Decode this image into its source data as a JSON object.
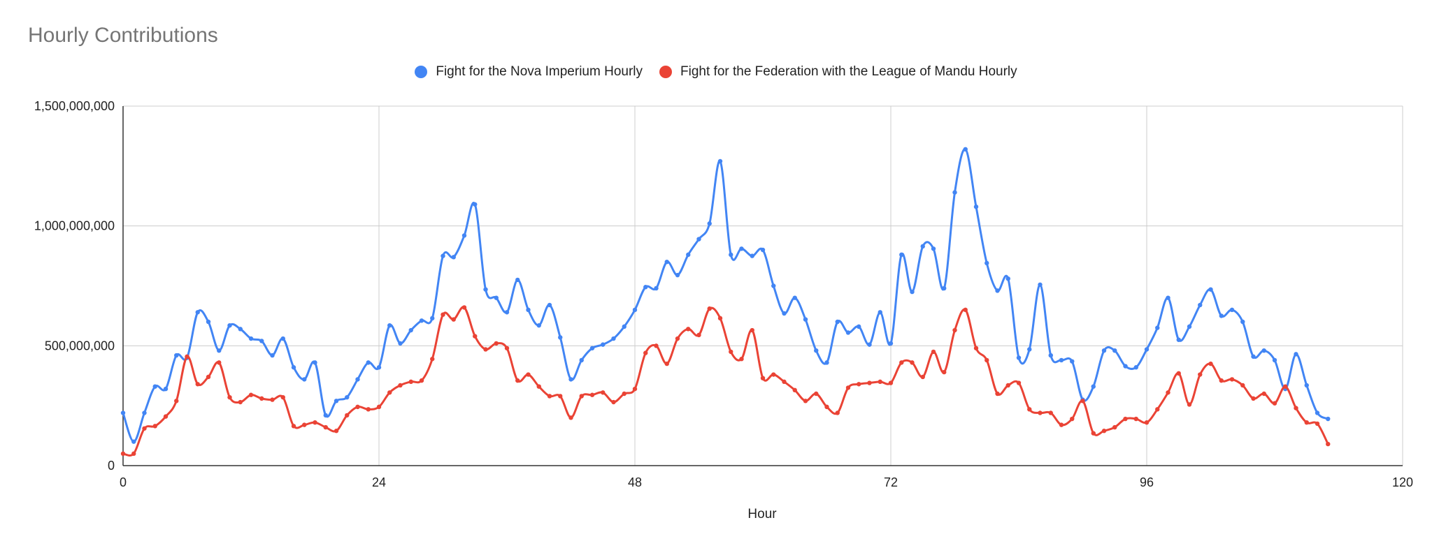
{
  "chart_data": {
    "type": "line",
    "title": "Hourly Contributions",
    "xlabel": "Hour",
    "ylabel": "",
    "xlim": [
      0,
      120
    ],
    "ylim": [
      0,
      1500000000
    ],
    "x_ticks": [
      0,
      24,
      48,
      72,
      96,
      120
    ],
    "y_ticks": [
      0,
      500000000,
      1000000000,
      1500000000
    ],
    "x_tick_labels": [
      "0",
      "24",
      "48",
      "72",
      "96",
      "120"
    ],
    "y_tick_labels": [
      "0",
      "500,000,000",
      "1,000,000,000",
      "1,500,000,000"
    ],
    "grid": true,
    "legend": "top",
    "series": [
      {
        "name": "Fight for the Nova Imperium Hourly",
        "color": "#4285F4",
        "x": [
          0,
          1,
          2,
          3,
          4,
          5,
          6,
          7,
          8,
          9,
          10,
          11,
          12,
          13,
          14,
          15,
          16,
          17,
          18,
          19,
          20,
          21,
          22,
          23,
          24,
          25,
          26,
          27,
          28,
          29,
          30,
          31,
          32,
          33,
          34,
          35,
          36,
          37,
          38,
          39,
          40,
          41,
          42,
          43,
          44,
          45,
          46,
          47,
          48,
          49,
          50,
          51,
          52,
          53,
          54,
          55,
          56,
          57,
          58,
          59,
          60,
          61,
          62,
          63,
          64,
          65,
          66,
          67,
          68,
          69,
          70,
          71,
          72,
          73,
          74,
          75,
          76,
          77,
          78,
          79,
          80,
          81,
          82,
          83,
          84,
          85,
          86,
          87,
          88,
          89,
          90,
          91,
          92,
          93,
          94,
          95,
          96,
          97,
          98,
          99,
          100,
          101,
          102,
          103,
          104,
          105,
          106,
          107,
          108,
          109,
          110,
          111,
          112,
          113
        ],
        "values": [
          220000000,
          100000000,
          220000000,
          330000000,
          320000000,
          460000000,
          450000000,
          640000000,
          600000000,
          480000000,
          585000000,
          570000000,
          530000000,
          520000000,
          460000000,
          530000000,
          410000000,
          360000000,
          430000000,
          210000000,
          270000000,
          285000000,
          360000000,
          430000000,
          410000000,
          585000000,
          510000000,
          565000000,
          605000000,
          615000000,
          875000000,
          870000000,
          960000000,
          1090000000,
          735000000,
          700000000,
          640000000,
          775000000,
          650000000,
          585000000,
          670000000,
          535000000,
          360000000,
          440000000,
          490000000,
          505000000,
          530000000,
          580000000,
          650000000,
          745000000,
          740000000,
          850000000,
          795000000,
          880000000,
          945000000,
          1010000000,
          1270000000,
          880000000,
          905000000,
          875000000,
          900000000,
          750000000,
          635000000,
          700000000,
          610000000,
          480000000,
          430000000,
          600000000,
          555000000,
          580000000,
          505000000,
          640000000,
          510000000,
          880000000,
          725000000,
          915000000,
          905000000,
          740000000,
          1140000000,
          1320000000,
          1080000000,
          845000000,
          730000000,
          780000000,
          450000000,
          485000000,
          755000000,
          460000000,
          440000000,
          435000000,
          275000000,
          330000000,
          480000000,
          480000000,
          415000000,
          410000000,
          485000000,
          575000000,
          700000000,
          525000000,
          580000000,
          670000000,
          735000000,
          625000000,
          650000000,
          600000000,
          455000000,
          480000000,
          440000000,
          320000000,
          465000000,
          335000000,
          220000000,
          195000000
        ]
      },
      {
        "name": "Fight for the Federation with the League of Mandu Hourly",
        "color": "#EA4335",
        "x": [
          0,
          1,
          2,
          3,
          4,
          5,
          6,
          7,
          8,
          9,
          10,
          11,
          12,
          13,
          14,
          15,
          16,
          17,
          18,
          19,
          20,
          21,
          22,
          23,
          24,
          25,
          26,
          27,
          28,
          29,
          30,
          31,
          32,
          33,
          34,
          35,
          36,
          37,
          38,
          39,
          40,
          41,
          42,
          43,
          44,
          45,
          46,
          47,
          48,
          49,
          50,
          51,
          52,
          53,
          54,
          55,
          56,
          57,
          58,
          59,
          60,
          61,
          62,
          63,
          64,
          65,
          66,
          67,
          68,
          69,
          70,
          71,
          72,
          73,
          74,
          75,
          76,
          77,
          78,
          79,
          80,
          81,
          82,
          83,
          84,
          85,
          86,
          87,
          88,
          89,
          90,
          91,
          92,
          93,
          94,
          95,
          96,
          97,
          98,
          99,
          100,
          101,
          102,
          103,
          104,
          105,
          106,
          107,
          108,
          109,
          110,
          111,
          112,
          113
        ],
        "values": [
          50000000,
          50000000,
          155000000,
          165000000,
          205000000,
          270000000,
          455000000,
          340000000,
          370000000,
          430000000,
          285000000,
          265000000,
          295000000,
          280000000,
          275000000,
          285000000,
          165000000,
          170000000,
          180000000,
          160000000,
          145000000,
          210000000,
          245000000,
          235000000,
          245000000,
          305000000,
          335000000,
          350000000,
          355000000,
          445000000,
          630000000,
          610000000,
          660000000,
          540000000,
          485000000,
          510000000,
          490000000,
          355000000,
          380000000,
          330000000,
          290000000,
          290000000,
          200000000,
          290000000,
          295000000,
          305000000,
          265000000,
          300000000,
          320000000,
          470000000,
          500000000,
          425000000,
          530000000,
          570000000,
          545000000,
          655000000,
          615000000,
          475000000,
          445000000,
          565000000,
          365000000,
          380000000,
          350000000,
          315000000,
          270000000,
          300000000,
          245000000,
          220000000,
          325000000,
          340000000,
          345000000,
          350000000,
          345000000,
          430000000,
          430000000,
          370000000,
          475000000,
          390000000,
          565000000,
          650000000,
          490000000,
          440000000,
          300000000,
          335000000,
          345000000,
          235000000,
          220000000,
          220000000,
          170000000,
          195000000,
          270000000,
          135000000,
          145000000,
          160000000,
          195000000,
          195000000,
          180000000,
          235000000,
          305000000,
          385000000,
          255000000,
          380000000,
          425000000,
          355000000,
          360000000,
          335000000,
          280000000,
          300000000,
          260000000,
          330000000,
          240000000,
          180000000,
          175000000,
          90000000
        ]
      }
    ]
  }
}
